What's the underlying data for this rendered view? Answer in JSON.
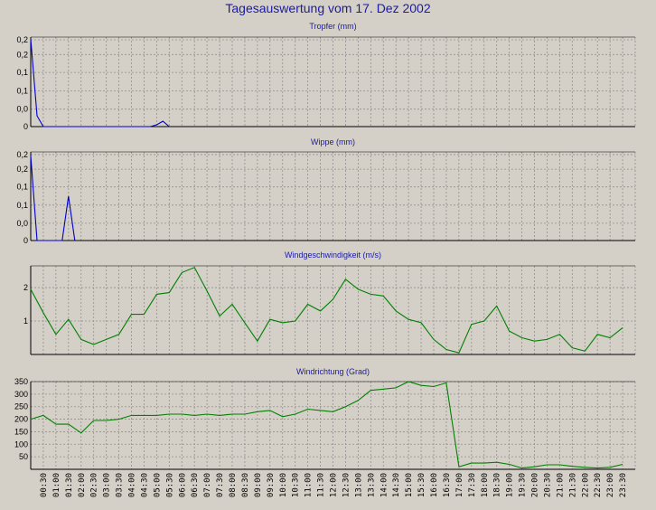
{
  "title": "Tagesauswertung vom 17. Dez 2002",
  "x_labels": [
    "00:30",
    "01:00",
    "01:30",
    "02:00",
    "02:30",
    "03:00",
    "03:30",
    "04:00",
    "04:30",
    "05:00",
    "05:30",
    "06:00",
    "06:30",
    "07:00",
    "07:30",
    "08:00",
    "08:30",
    "09:00",
    "09:30",
    "10:00",
    "10:30",
    "11:00",
    "11:30",
    "12:00",
    "12:30",
    "13:00",
    "13:30",
    "14:00",
    "14:30",
    "15:00",
    "15:30",
    "16:00",
    "16:30",
    "17:00",
    "17:30",
    "18:00",
    "18:30",
    "19:00",
    "19:30",
    "20:00",
    "20:30",
    "21:00",
    "21:30",
    "22:00",
    "22:30",
    "23:00",
    "23:30"
  ],
  "colors": {
    "grid": "#909090",
    "background": "#d4d0c8",
    "precip_line": "#0000cc",
    "wind_line": "#008000",
    "title_text": "#1a1aa8"
  },
  "chart_data": [
    {
      "type": "line",
      "title": "Tropfer (mm)",
      "y_tick_labels": [
        "0,2",
        "0,2",
        "0,1",
        "0,1",
        "0,0",
        "0"
      ],
      "ylim": [
        0,
        0.25
      ],
      "grid": true,
      "color": "#0000cc",
      "points": [
        [
          0.0,
          0.245
        ],
        [
          0.5,
          0.03
        ],
        [
          1.0,
          0.0
        ],
        [
          9.5,
          0.0
        ],
        [
          10.0,
          0.005
        ],
        [
          10.5,
          0.015
        ],
        [
          11.0,
          0.0
        ]
      ]
    },
    {
      "type": "line",
      "title": "Wippe (mm)",
      "y_tick_labels": [
        "0,2",
        "0,2",
        "0,1",
        "0,1",
        "0,0",
        "0"
      ],
      "ylim": [
        0,
        0.25
      ],
      "grid": true,
      "color": "#0000cc",
      "points": [
        [
          0.0,
          0.24
        ],
        [
          0.5,
          0.0
        ],
        [
          2.5,
          0.0
        ],
        [
          3.0,
          0.125
        ],
        [
          3.5,
          0.0
        ]
      ]
    },
    {
      "type": "line",
      "title": "Windgeschwindigkeit (m/s)",
      "y_tick_labels": [
        "1",
        "2"
      ],
      "y_tick_values": [
        1,
        2
      ],
      "ylim": [
        0,
        2.65
      ],
      "grid": true,
      "color": "#008000",
      "values": [
        1.95,
        1.25,
        0.6,
        1.05,
        0.45,
        0.3,
        0.45,
        0.6,
        1.2,
        1.2,
        1.8,
        1.85,
        2.45,
        2.6,
        1.9,
        1.15,
        1.5,
        0.95,
        0.4,
        1.05,
        0.95,
        1.0,
        1.5,
        1.3,
        1.65,
        2.25,
        1.95,
        1.8,
        1.75,
        1.3,
        1.05,
        0.95,
        0.45,
        0.15,
        0.05,
        0.9,
        1.0,
        1.45,
        0.7,
        0.5,
        0.4,
        0.45,
        0.6,
        0.2,
        0.1,
        0.6,
        0.5,
        0.8
      ]
    },
    {
      "type": "line",
      "title": "Windrichtung (Grad)",
      "y_tick_labels": [
        "50",
        "100",
        "150",
        "200",
        "250",
        "300",
        "350"
      ],
      "y_tick_values": [
        50,
        100,
        150,
        200,
        250,
        300,
        350
      ],
      "ylim": [
        0,
        350
      ],
      "grid": true,
      "color": "#008000",
      "values": [
        200,
        215,
        180,
        180,
        145,
        195,
        195,
        200,
        215,
        215,
        215,
        220,
        220,
        215,
        220,
        215,
        220,
        220,
        230,
        235,
        210,
        220,
        240,
        235,
        230,
        250,
        275,
        315,
        320,
        325,
        350,
        335,
        330,
        345,
        10,
        25,
        25,
        28,
        20,
        5,
        10,
        18,
        18,
        12,
        8,
        5,
        8,
        20
      ]
    }
  ]
}
